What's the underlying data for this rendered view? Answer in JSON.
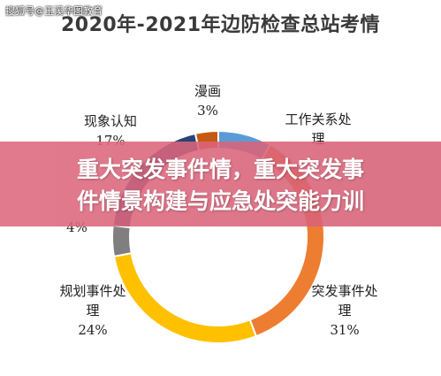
{
  "watermark": "搜狐号@玉溪华图教育",
  "overlay": {
    "line1": "重大突发事件情，重大突发事",
    "line2": "件情景构建与应急处突能力训"
  },
  "chart_data": {
    "type": "pie",
    "title": "2020年-2021年边防检查总站考情",
    "donut": true,
    "slices": [
      {
        "label_line1": "工作关系处",
        "label_line2": "理",
        "percent_label": "",
        "value": 7,
        "color": "#5b9bd5"
      },
      {
        "label_line1": "突发事件处",
        "label_line2": "理",
        "percent_label": "31%",
        "value": 31,
        "color": "#ed7d31"
      },
      {
        "label_line1": "规划事件处",
        "label_line2": "理",
        "percent_label": "24%",
        "value": 24,
        "color": "#ffc000"
      },
      {
        "label_line1": "",
        "label_line2": "",
        "percent_label": "4%",
        "value": 4,
        "color": "#7f7f7f"
      },
      {
        "label_line1": "现象认知",
        "label_line2": "",
        "percent_label": "17%",
        "value": 17,
        "color": "#264478"
      },
      {
        "label_line1": "漫画",
        "label_line2": "",
        "percent_label": "3%",
        "value": 3,
        "color": "#c55a11"
      }
    ]
  }
}
